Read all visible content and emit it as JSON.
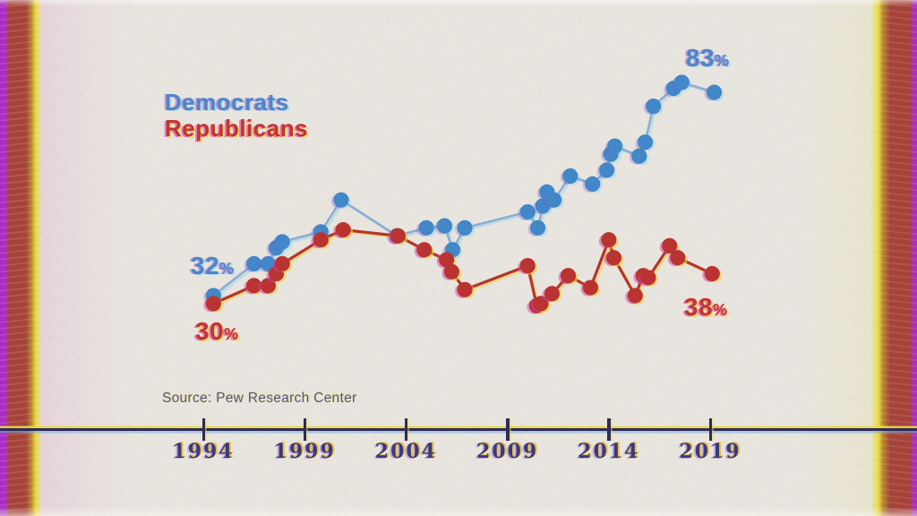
{
  "legend": {
    "democrats_label": "Democrats",
    "republicans_label": "Republicans"
  },
  "callouts": {
    "dem_start": {
      "num": "32",
      "sym": "%"
    },
    "rep_start": {
      "num": "30",
      "sym": "%"
    },
    "dem_end": {
      "num": "83",
      "sym": "%"
    },
    "rep_end": {
      "num": "38",
      "sym": "%"
    }
  },
  "source_text": "Source: Pew Research Center",
  "x_axis": {
    "tick_labels": [
      "1994",
      "1999",
      "2004",
      "2009",
      "2014",
      "2019"
    ]
  },
  "colors": {
    "democrat_blue": "#4287c7",
    "democrat_line": "#8badd2",
    "republican_red": "#b93431",
    "republican_line": "#b5352d",
    "axis_ink": "#2d2a5c",
    "year_ink": "#3a3a78",
    "background": "#eae7e1",
    "border_red": "#a3443c",
    "fringe_yellow": "#f0cf35",
    "fringe_magenta": "#cf3fae",
    "fringe_cyan": "#5fc8ef",
    "fringe_violet": "#8a4fd0"
  },
  "chart_data": {
    "type": "line",
    "y_unit": "%",
    "x_range": [
      1993,
      2020.5
    ],
    "y_range": [
      25,
      90
    ],
    "x_ticks": [
      1994,
      1999,
      2004,
      2009,
      2014,
      2019
    ],
    "legend_position": "top-left",
    "grid": false,
    "series": [
      {
        "key": "democrats",
        "name": "Democrats",
        "color": "#4287c7",
        "line_color": "#8badd2",
        "points": [
          [
            1994.5,
            32
          ],
          [
            1996.5,
            40
          ],
          [
            1997.2,
            40
          ],
          [
            1997.6,
            44
          ],
          [
            1997.9,
            45.5
          ],
          [
            1999.8,
            48
          ],
          [
            2000.8,
            56
          ],
          [
            2003.55,
            47
          ],
          [
            2005.0,
            49
          ],
          [
            2005.9,
            49.5
          ],
          [
            2006.3,
            43.5
          ],
          [
            2006.9,
            49
          ],
          [
            2010.0,
            53
          ],
          [
            2010.5,
            49
          ],
          [
            2010.75,
            54.5
          ],
          [
            2010.95,
            58
          ],
          [
            2011.3,
            56
          ],
          [
            2012.1,
            62
          ],
          [
            2013.2,
            60
          ],
          [
            2013.9,
            63.5
          ],
          [
            2014.1,
            67.5
          ],
          [
            2014.3,
            69.5
          ],
          [
            2015.5,
            67
          ],
          [
            2015.8,
            70.5
          ],
          [
            2016.2,
            79.5
          ],
          [
            2017.2,
            84
          ],
          [
            2017.6,
            85.5
          ],
          [
            2019.2,
            83
          ]
        ]
      },
      {
        "key": "republicans",
        "name": "Republicans",
        "color": "#b93431",
        "line_color": "#b5352d",
        "points": [
          [
            1994.5,
            30
          ],
          [
            1996.5,
            34.5
          ],
          [
            1997.2,
            34.5
          ],
          [
            1997.6,
            37.5
          ],
          [
            1997.9,
            40
          ],
          [
            1999.8,
            46
          ],
          [
            2000.9,
            48.5
          ],
          [
            2003.6,
            47
          ],
          [
            2004.9,
            43.5
          ],
          [
            2006.0,
            41
          ],
          [
            2006.25,
            38
          ],
          [
            2006.9,
            33.5
          ],
          [
            2010.0,
            39.5
          ],
          [
            2010.45,
            29.5
          ],
          [
            2010.65,
            30
          ],
          [
            2011.2,
            32.5
          ],
          [
            2012.0,
            37
          ],
          [
            2013.1,
            34
          ],
          [
            2014.0,
            46
          ],
          [
            2014.25,
            41.5
          ],
          [
            2015.3,
            32
          ],
          [
            2015.7,
            37
          ],
          [
            2015.95,
            36.5
          ],
          [
            2017.0,
            44.5
          ],
          [
            2017.4,
            41.5
          ],
          [
            2019.1,
            37.5
          ]
        ]
      }
    ]
  }
}
